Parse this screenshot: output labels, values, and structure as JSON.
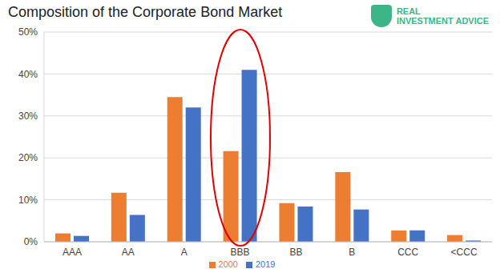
{
  "chart_data": {
    "type": "bar",
    "title": "Composition of the Corporate Bond Market",
    "annotations": [
      "REAL",
      "INVESTMENT",
      "ADVICE"
    ],
    "categories": [
      "AAA",
      "AA",
      "A",
      "BBB",
      "BB",
      "B",
      "CCC",
      "<CCC"
    ],
    "series": [
      {
        "name": "2000",
        "color": "#ed7d31",
        "values": [
          2.0,
          11.7,
          34.5,
          21.6,
          9.2,
          16.6,
          2.7,
          1.6
        ]
      },
      {
        "name": "2019",
        "color": "#4472c4",
        "values": [
          1.4,
          6.4,
          32.0,
          41.0,
          8.4,
          7.7,
          2.7,
          0.3
        ]
      }
    ],
    "ylim": [
      0,
      50
    ],
    "yticks": [
      {
        "value": 0,
        "label": "0%"
      },
      {
        "value": 10,
        "label": "10%"
      },
      {
        "value": 20,
        "label": "20%"
      },
      {
        "value": 30,
        "label": "30%"
      },
      {
        "value": 40,
        "label": "40%"
      },
      {
        "value": 50,
        "label": "50%"
      }
    ],
    "grid": true,
    "legend": "bottom"
  }
}
